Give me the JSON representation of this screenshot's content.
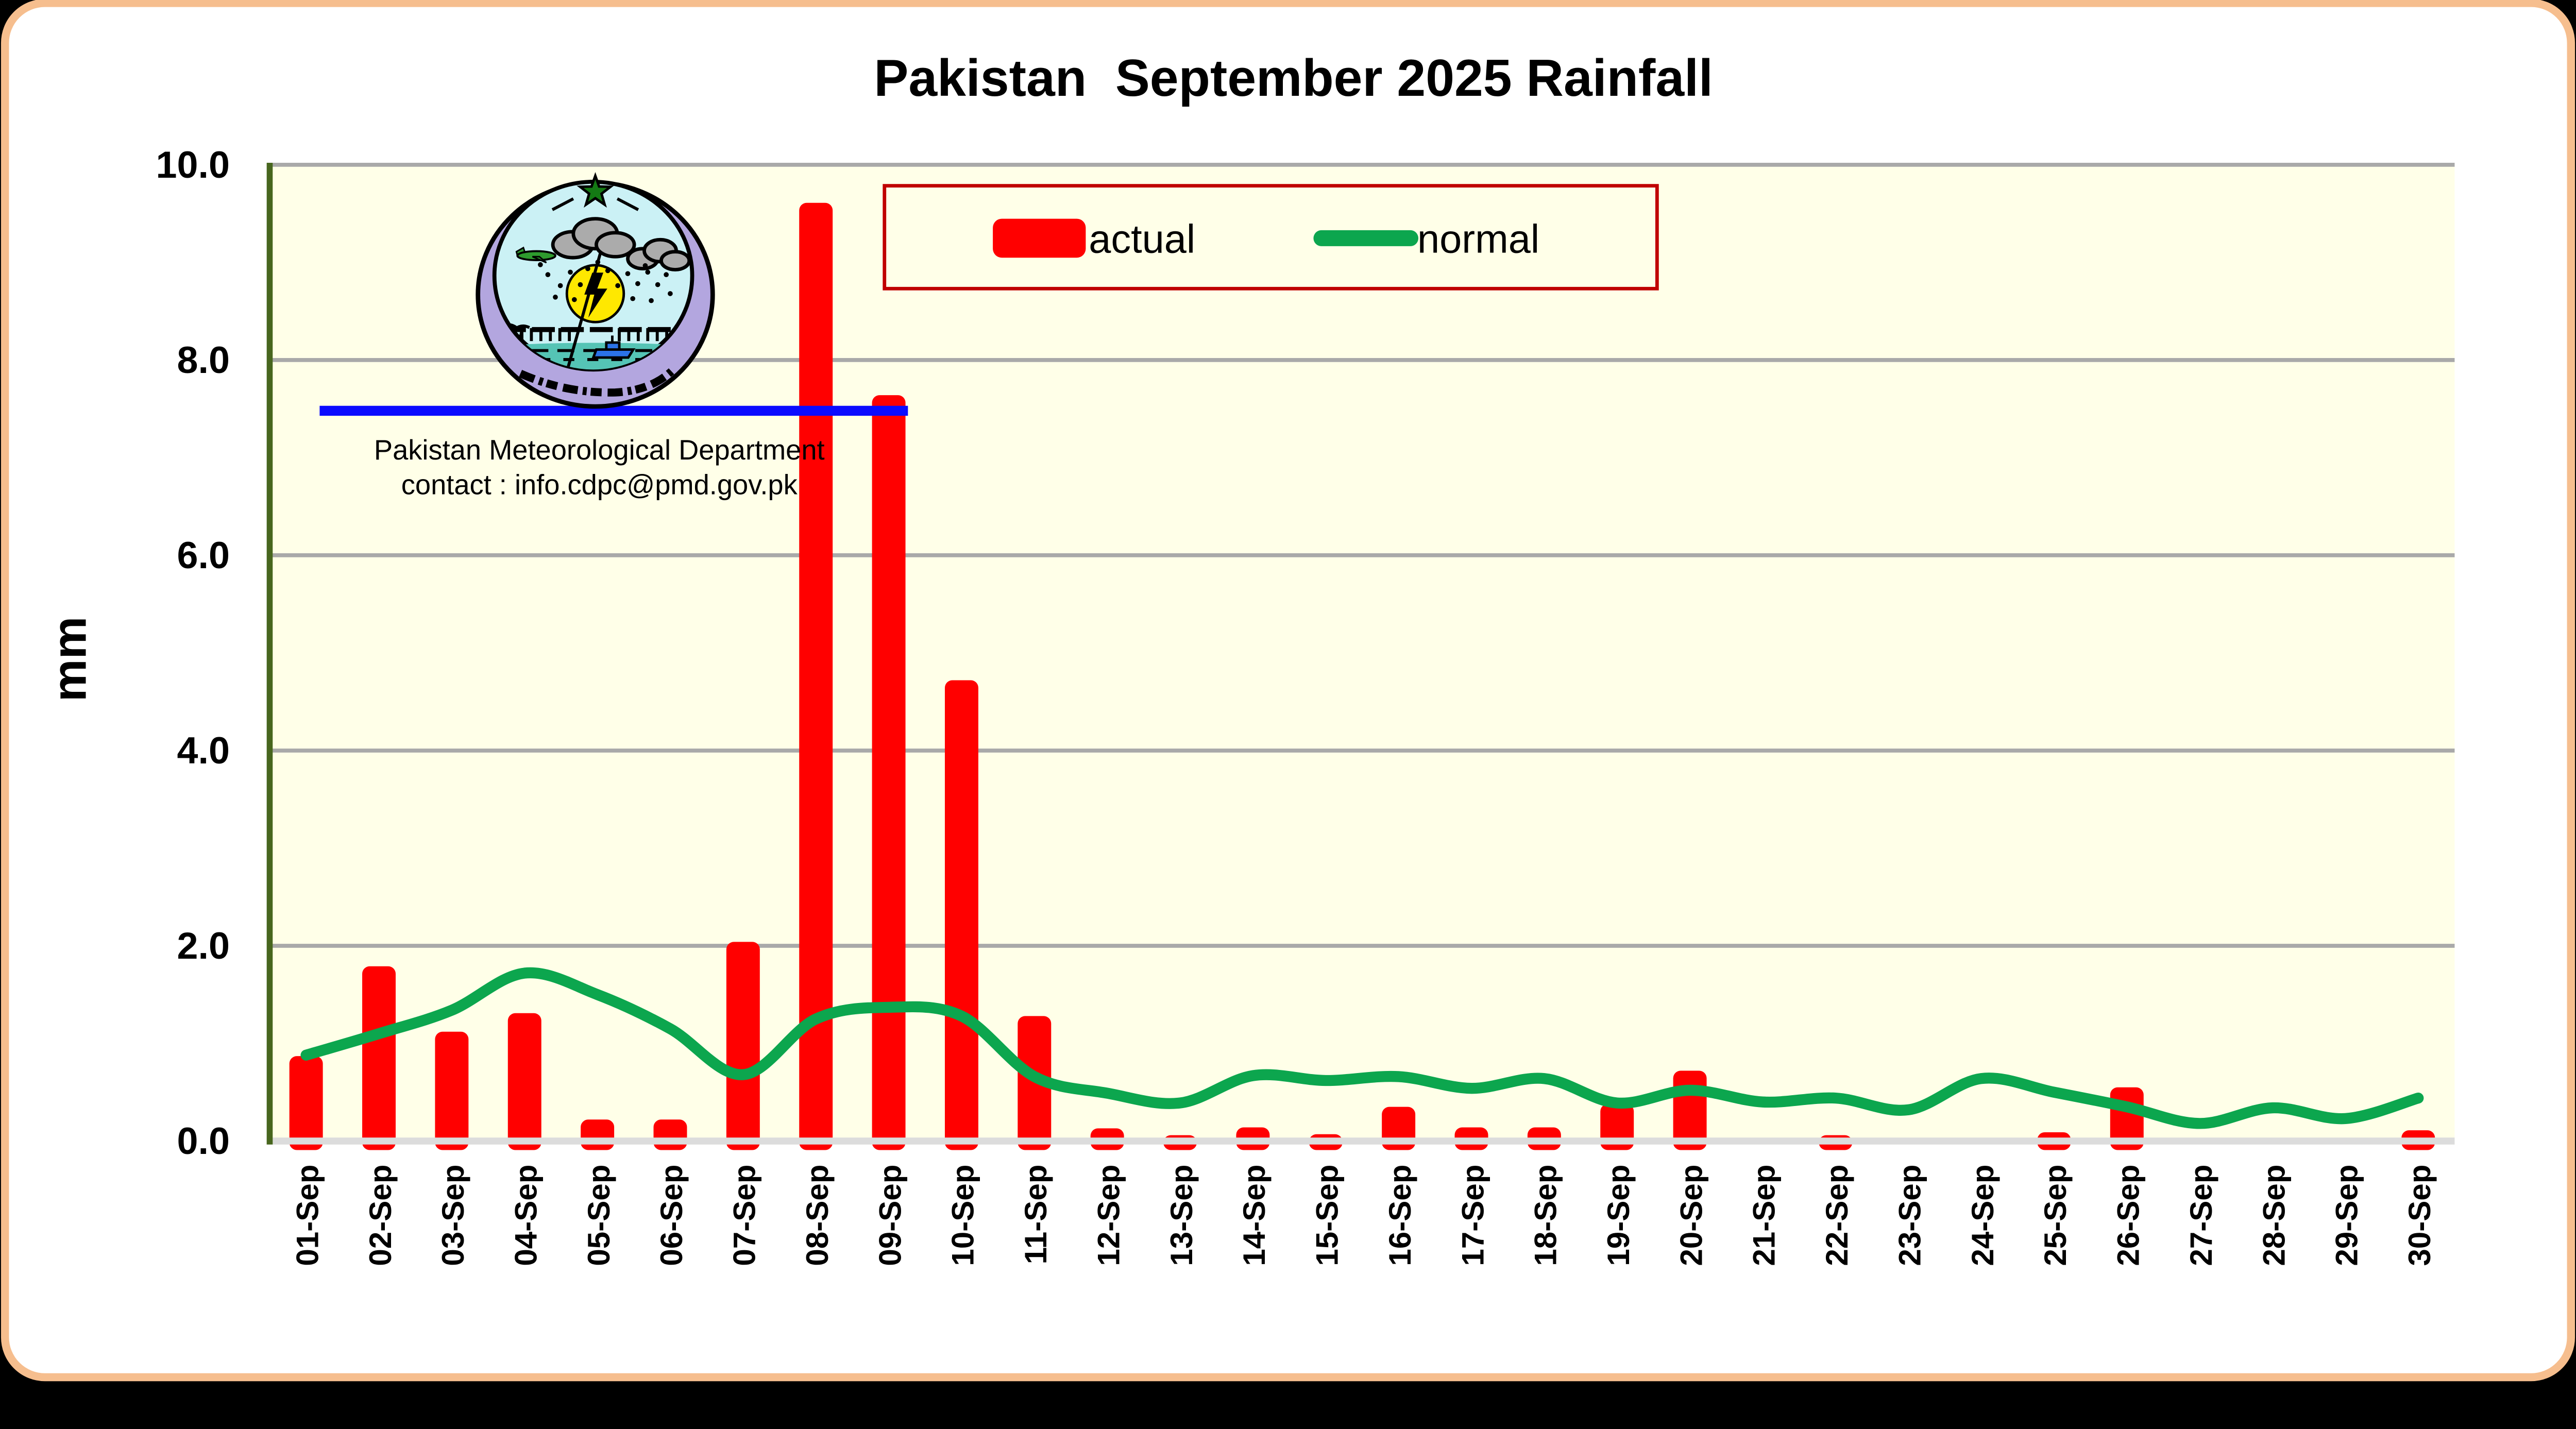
{
  "title": "Pakistan  September 2025 Rainfall",
  "annotation": {
    "line1": "Pakistan Meteorological Department",
    "line2": "contact : info.cdpc@pmd.gov.pk"
  },
  "axis": {
    "ylabel": "mm",
    "y_ticks": [
      "0.0",
      "2.0",
      "4.0",
      "6.0",
      "8.0",
      "10.0"
    ]
  },
  "colors": {
    "outer_bg": "#000000",
    "frame_border": "#F6BE8E",
    "page_bg": "#FFFFFF",
    "plot_bg": "#FFFFE8",
    "gridline": "#A9A9A9",
    "baseline": "#DCDCDC",
    "axis_border": "#47661E",
    "bar": "#FF0000",
    "line": "#0CA64E",
    "reference_line": "#0B0BFF",
    "legend_border": "#C00000",
    "legend_text": "#595959",
    "text": "#000000"
  },
  "chart_data": {
    "type": "bar",
    "title": "Pakistan  September 2025 Rainfall",
    "xlabel": "",
    "ylabel": "mm",
    "ylim": [
      0,
      10
    ],
    "y_tick_step": 2.0,
    "grid": "horizontal gray lines every 2.0 mm",
    "legend_position": "top-center inside plot, dark-red border",
    "categories": [
      "01-Sep",
      "02-Sep",
      "03-Sep",
      "04-Sep",
      "05-Sep",
      "06-Sep",
      "07-Sep",
      "08-Sep",
      "09-Sep",
      "10-Sep",
      "11-Sep",
      "12-Sep",
      "13-Sep",
      "14-Sep",
      "15-Sep",
      "16-Sep",
      "17-Sep",
      "18-Sep",
      "19-Sep",
      "20-Sep",
      "21-Sep",
      "22-Sep",
      "23-Sep",
      "24-Sep",
      "25-Sep",
      "26-Sep",
      "27-Sep",
      "28-Sep",
      "29-Sep",
      "30-Sep"
    ],
    "series": [
      {
        "name": "actual",
        "type": "bar",
        "color": "#FF0000",
        "values": [
          0.87,
          1.79,
          1.12,
          1.31,
          0.22,
          0.22,
          2.04,
          9.61,
          7.64,
          4.72,
          1.28,
          0.13,
          0.06,
          0.14,
          0.07,
          0.35,
          0.14,
          0.14,
          0.38,
          0.72,
          0,
          0.06,
          0,
          0,
          0.09,
          0.55,
          0,
          0,
          0,
          0.11
        ]
      },
      {
        "name": "normal",
        "type": "line",
        "color": "#0CA64E",
        "values": [
          0.88,
          1.1,
          1.34,
          1.72,
          1.5,
          1.15,
          0.68,
          1.25,
          1.37,
          1.28,
          0.66,
          0.49,
          0.39,
          0.67,
          0.62,
          0.66,
          0.54,
          0.64,
          0.39,
          0.52,
          0.4,
          0.44,
          0.32,
          0.64,
          0.5,
          0.35,
          0.18,
          0.34,
          0.23,
          0.44
        ]
      }
    ],
    "reference_line": {
      "description": "horizontal blue line under the logo, spans from 01-Sep to just past 09-Sep",
      "value": 7.48,
      "color": "#0B0BFF"
    }
  }
}
